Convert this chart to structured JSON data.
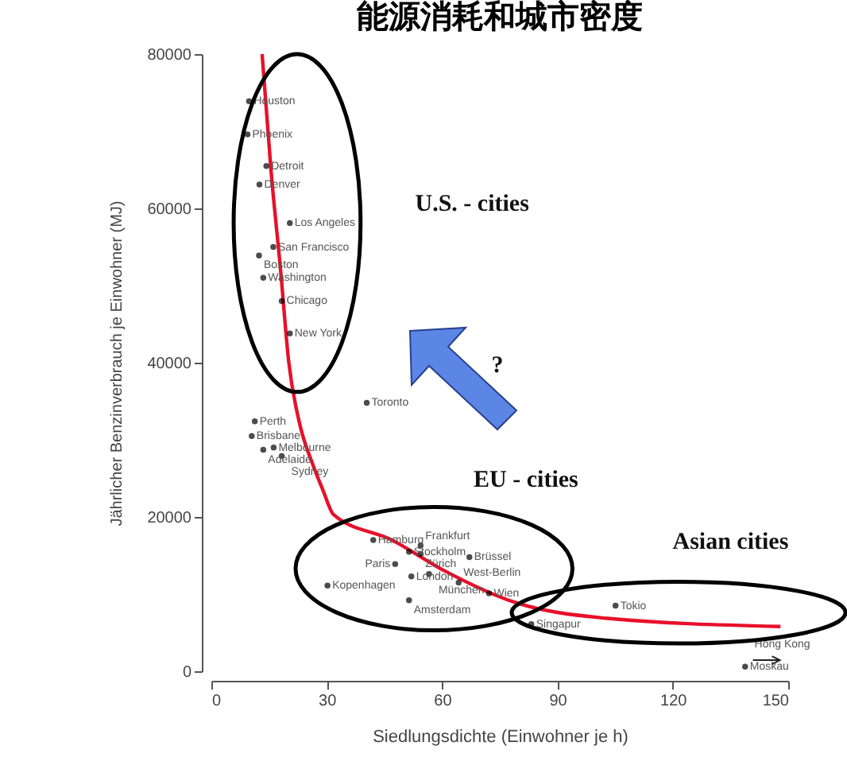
{
  "chart_data": {
    "type": "scatter",
    "title": "能源消耗和城市密度",
    "xlabel": "Siedlungsdichte (Einwohner je h)",
    "ylabel": "Jährlicher Benzinverbrauch je Einwohner (MJ)",
    "xlim": [
      0,
      150
    ],
    "xticks": [
      0,
      30,
      60,
      90,
      120,
      150
    ],
    "ylim": [
      0,
      80000
    ],
    "yticks": [
      0,
      20000,
      40000,
      60000,
      80000
    ],
    "grid": false,
    "series": [
      {
        "type": "scatter",
        "color": "#000000",
        "x": [
          9.8,
          9.4,
          14.3,
          12.5,
          20.4,
          16.1,
          12.4,
          13.5,
          18.3,
          20.4,
          40.4,
          11.3,
          10.5,
          16.2,
          13.5,
          18.3,
          42.1,
          51.4,
          54.4,
          54.4,
          67.1,
          47.8,
          52,
          56.6,
          64.3,
          72.2,
          30.2,
          51.4,
          105.1,
          83.2,
          138.8
        ],
        "values": [
          73900,
          69600,
          65500,
          63100,
          58100,
          55000,
          53900,
          51000,
          48000,
          43800,
          34800,
          32400,
          30500,
          29000,
          28700,
          27900,
          17000,
          15500,
          16300,
          15200,
          14800,
          13900,
          12300,
          12600,
          11500,
          10100,
          11100,
          9200,
          8500,
          6100,
          600
        ]
      },
      {
        "type": "line",
        "color": "#e8102a",
        "x": [
          13.2,
          15.5,
          18,
          20.1,
          23,
          26.3,
          29,
          31.8,
          47,
          60.7,
          78.5,
          102,
          148
        ],
        "values": [
          80000,
          65000,
          52000,
          40200,
          32000,
          26900,
          23500,
          20300,
          17000,
          13000,
          9000,
          6900,
          5800
        ]
      }
    ],
    "annotations": [
      {
        "text": "Houston",
        "x": 9.8,
        "y": 73900
      },
      {
        "text": "Phoenix",
        "x": 9.4,
        "y": 69600
      },
      {
        "text": "Detroit",
        "x": 14.3,
        "y": 65500
      },
      {
        "text": "Denver",
        "x": 12.5,
        "y": 63100
      },
      {
        "text": "Los Angeles",
        "x": 20.4,
        "y": 58100
      },
      {
        "text": "San Francisco",
        "x": 16.1,
        "y": 55000
      },
      {
        "text": "Boston",
        "x": 12.4,
        "y": 53900
      },
      {
        "text": "Washington",
        "x": 13.5,
        "y": 51000
      },
      {
        "text": "Chicago",
        "x": 18.3,
        "y": 48000
      },
      {
        "text": "New York",
        "x": 20.4,
        "y": 43800
      },
      {
        "text": "Toronto",
        "x": 40.4,
        "y": 34800
      },
      {
        "text": "Perth",
        "x": 11.3,
        "y": 32400
      },
      {
        "text": "Brisbane",
        "x": 10.5,
        "y": 30500
      },
      {
        "text": "Melbourne",
        "x": 16.2,
        "y": 29000
      },
      {
        "text": "Adelaide",
        "x": 13.5,
        "y": 28700
      },
      {
        "text": "Sydney",
        "x": 18.3,
        "y": 27900
      },
      {
        "text": "Hamburg",
        "x": 42.1,
        "y": 17000
      },
      {
        "text": "Stockholm",
        "x": 51.4,
        "y": 15500
      },
      {
        "text": "Frankfurt",
        "x": 54.4,
        "y": 16300
      },
      {
        "text": "Zürich",
        "x": 54.4,
        "y": 15200
      },
      {
        "text": "Brüssel",
        "x": 67.1,
        "y": 14800
      },
      {
        "text": "Paris",
        "x": 47.8,
        "y": 13900
      },
      {
        "text": "London",
        "x": 52,
        "y": 12300
      },
      {
        "text": "München",
        "x": 56.6,
        "y": 12600
      },
      {
        "text": "West-Berlin",
        "x": 64.3,
        "y": 11500
      },
      {
        "text": "Wien",
        "x": 72.2,
        "y": 10100
      },
      {
        "text": "Kopenhagen",
        "x": 30.2,
        "y": 11100
      },
      {
        "text": "Amsterdam",
        "x": 51.4,
        "y": 9200
      },
      {
        "text": "Tokio",
        "x": 105.1,
        "y": 8500
      },
      {
        "text": "Singapur",
        "x": 83.2,
        "y": 6100
      },
      {
        "text": "Moskau",
        "x": 138.8,
        "y": 600
      },
      "Hong Kong",
      "U.S. - cities",
      "EU - cities",
      "Asian cities",
      "?"
    ]
  }
}
